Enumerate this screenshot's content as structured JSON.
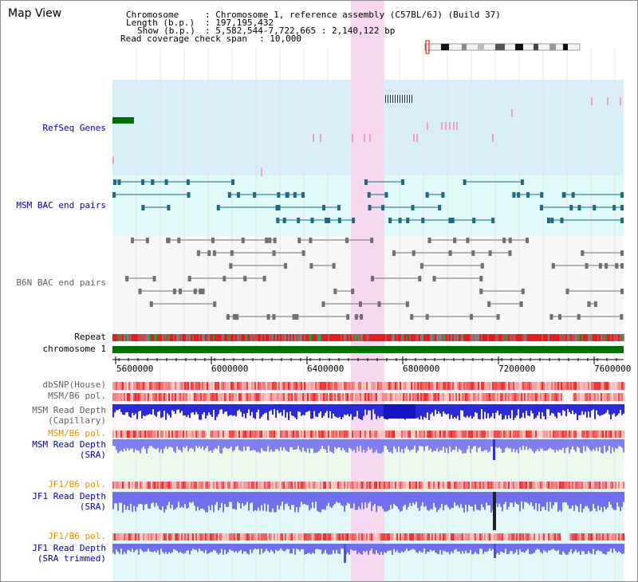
{
  "title": "Map View",
  "header": {
    "chromosome_key": "Chromosome",
    "chromosome_val": ": Chromosome 1, reference assembly (C57BL/6J) (Build 37)",
    "length_key": "Length (b.p.)",
    "length_val": ": 197,195,432",
    "show_key": "Show (b.p.)",
    "show_val": ": 5,582,544-7,722,665 : 2,140,122 bp",
    "coverage_key": "Read coverage check span",
    "coverage_val": ": 10,000"
  },
  "tracks": {
    "refseq": "RefSeq Genes",
    "msm_bac": "MSM BAC end pairs",
    "b6n_bac": "B6N BAC end pairs",
    "repeat": "Repeat",
    "chromosome": "chromosome 1",
    "dbsnp": "dbSNP(House)",
    "msm_b6_pol_1": "MSM/B6 pol.",
    "msm_depth_cap_1": "MSM Read Depth",
    "msm_depth_cap_2": "(Capillary)",
    "msm_b6_pol_2": "MSM/B6 pol.",
    "msm_depth_sra_1": "MSM Read Depth",
    "msm_depth_sra_2": "(SRA)",
    "jf1_b6_pol_1": "JF1/B6 pol.",
    "jf1_depth_sra_1": "JF1 Read Depth",
    "jf1_depth_sra_2": "(SRA)",
    "jf1_b6_pol_2": "JF1/B6 pol.",
    "jf1_depth_trim_1": "JF1 Read Depth",
    "jf1_depth_trim_2": "(SRA trimmed)"
  },
  "axis": {
    "ticks": [
      "5600000",
      "6000000",
      "6400000",
      "6800000",
      "7200000",
      "7600000"
    ]
  },
  "colors": {
    "refseq_band": "#d8eef8",
    "msm_band": "#dff8f8",
    "highlight": "#f8d8f0",
    "chromosome_bar": "#007000",
    "label_blue": "#0000b0",
    "label_orange": "#e09000",
    "label_gray": "#606060"
  }
}
